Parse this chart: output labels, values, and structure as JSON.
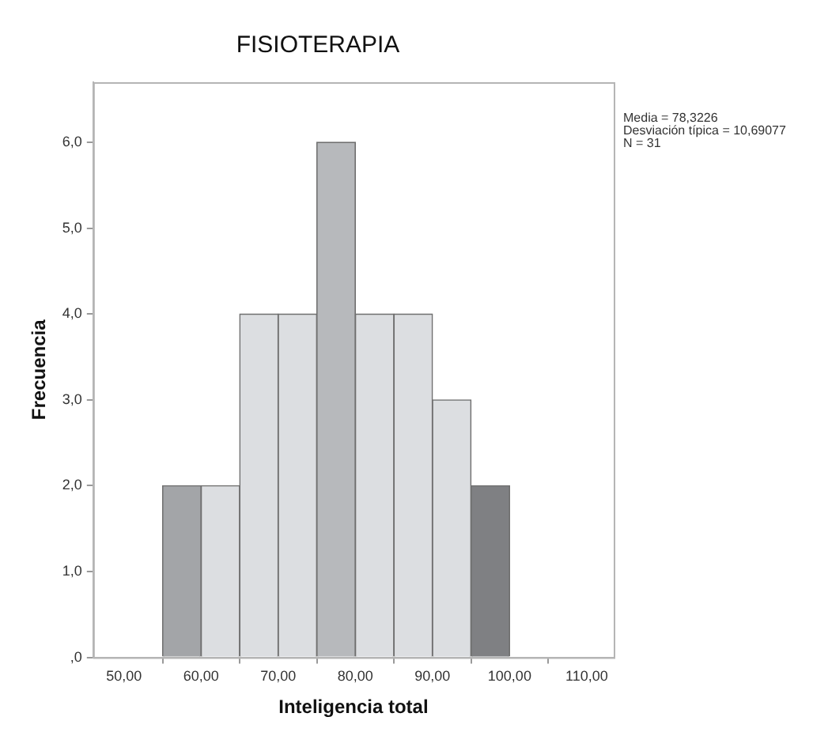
{
  "chart_data": {
    "type": "histogram",
    "title": "FISIOTERAPIA",
    "xlabel": "Inteligencia total",
    "ylabel": "Frecuencia",
    "bins": [
      55,
      60,
      65,
      70,
      75,
      80,
      85,
      90,
      95,
      100
    ],
    "values": [
      2,
      2,
      4,
      4,
      6,
      4,
      4,
      3,
      2
    ],
    "colors": [
      "#a3a5a8",
      "#dcdee1",
      "#dcdee1",
      "#dcdee1",
      "#b7b9bc",
      "#dcdee1",
      "#dcdee1",
      "#dcdee1",
      "#7f8083"
    ],
    "xlim": [
      46,
      113.5
    ],
    "xticks": [
      {
        "value": 50,
        "label": "50,00"
      },
      {
        "value": 60,
        "label": "60,00"
      },
      {
        "value": 70,
        "label": "70,00"
      },
      {
        "value": 80,
        "label": "80,00"
      },
      {
        "value": 90,
        "label": "90,00"
      },
      {
        "value": 100,
        "label": "100,00"
      },
      {
        "value": 110,
        "label": "110,00"
      }
    ],
    "ylim": [
      0,
      6.7
    ],
    "yticks": [
      {
        "value": 0,
        "label": ",0"
      },
      {
        "value": 1,
        "label": "1,0"
      },
      {
        "value": 2,
        "label": "2,0"
      },
      {
        "value": 3,
        "label": "3,0"
      },
      {
        "value": 4,
        "label": "4,0"
      },
      {
        "value": 5,
        "label": "5,0"
      },
      {
        "value": 6,
        "label": "6,0"
      }
    ],
    "grid": false,
    "legend": false,
    "annotations": [
      "Media = 78,3226",
      "Desviación típica = 10,69077",
      "N = 31"
    ]
  }
}
